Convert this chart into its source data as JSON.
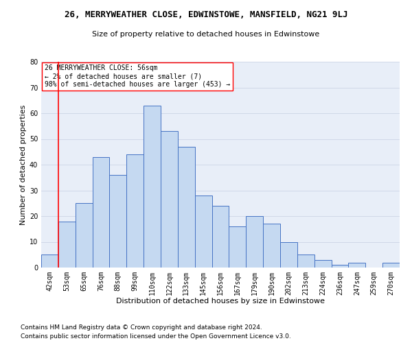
{
  "title_line1": "26, MERRYWEATHER CLOSE, EDWINSTOWE, MANSFIELD, NG21 9LJ",
  "title_line2": "Size of property relative to detached houses in Edwinstowe",
  "xlabel": "Distribution of detached houses by size in Edwinstowe",
  "ylabel": "Number of detached properties",
  "footnote1": "Contains HM Land Registry data © Crown copyright and database right 2024.",
  "footnote2": "Contains public sector information licensed under the Open Government Licence v3.0.",
  "categories": [
    "42sqm",
    "53sqm",
    "65sqm",
    "76sqm",
    "88sqm",
    "99sqm",
    "110sqm",
    "122sqm",
    "133sqm",
    "145sqm",
    "156sqm",
    "167sqm",
    "179sqm",
    "190sqm",
    "202sqm",
    "213sqm",
    "224sqm",
    "236sqm",
    "247sqm",
    "259sqm",
    "270sqm"
  ],
  "values": [
    5,
    18,
    25,
    43,
    36,
    44,
    63,
    53,
    47,
    28,
    24,
    16,
    20,
    17,
    10,
    5,
    3,
    1,
    2,
    0,
    2
  ],
  "bar_color": "#c5d9f1",
  "bar_edge_color": "#4472c4",
  "vline_color": "red",
  "vline_x_index": 0.5,
  "annotation_text": "26 MERRYWEATHER CLOSE: 56sqm\n← 2% of detached houses are smaller (7)\n98% of semi-detached houses are larger (453) →",
  "annotation_box_color": "white",
  "annotation_box_edge_color": "red",
  "ylim": [
    0,
    80
  ],
  "yticks": [
    0,
    10,
    20,
    30,
    40,
    50,
    60,
    70,
    80
  ],
  "grid_color": "#d0d8e8",
  "bg_color": "#e8eef8",
  "title_fontsize": 9,
  "subtitle_fontsize": 8,
  "xlabel_fontsize": 8,
  "ylabel_fontsize": 8,
  "tick_fontsize": 7,
  "annot_fontsize": 7,
  "footnote_fontsize": 6.5
}
